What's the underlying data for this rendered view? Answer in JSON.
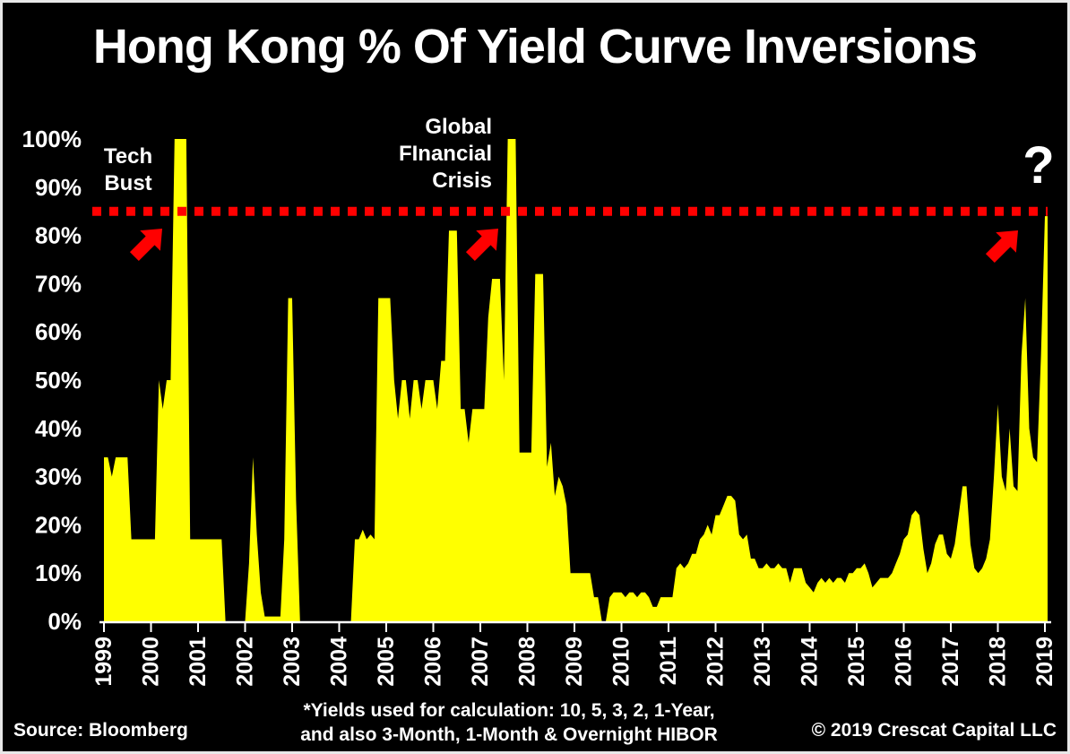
{
  "title": "Hong Kong % Of Yield Curve Inversions",
  "colors": {
    "background": "#000000",
    "text": "#ffffff",
    "series_yellow": "#ffff00",
    "accent_red": "#ff0000",
    "axis": "#ffffff"
  },
  "annotations": {
    "tech_bust": {
      "lines": [
        "Tech",
        "Bust"
      ]
    },
    "gfc": {
      "lines": [
        "Global",
        "FInancial",
        "Crisis"
      ]
    },
    "question_mark": "?"
  },
  "footer": {
    "source": "Source: Bloomberg",
    "note_line1": "*Yields used for calculation: 10, 5, 3, 2, 1-Year,",
    "note_line2": "and also 3-Month, 1-Month & Overnight HIBOR",
    "copyright": "© 2019 Crescat Capital LLC"
  },
  "chart_data": {
    "type": "area",
    "title": "Hong Kong % Of Yield Curve Inversions",
    "series_name": "% of yield curve inversions",
    "series_color": "#ffff00",
    "x_start_year": 1999,
    "points_per_year": 12,
    "x_tick_years": [
      1999,
      2000,
      2001,
      2002,
      2003,
      2004,
      2005,
      2006,
      2007,
      2008,
      2009,
      2010,
      2011,
      2012,
      2013,
      2014,
      2015,
      2016,
      2017,
      2018,
      2019
    ],
    "y_ticks_percent": [
      0,
      10,
      20,
      30,
      40,
      50,
      60,
      70,
      80,
      90,
      100
    ],
    "ylim": [
      0,
      100
    ],
    "grid": false,
    "legend": "none",
    "threshold_line": {
      "value_percent": 85,
      "color": "#ff0000",
      "style": "dotted"
    },
    "values_percent": [
      34,
      34,
      30,
      34,
      34,
      34,
      34,
      17,
      17,
      17,
      17,
      17,
      17,
      17,
      50,
      44,
      50,
      50,
      100,
      100,
      100,
      100,
      17,
      17,
      17,
      17,
      17,
      17,
      17,
      17,
      17,
      0,
      0,
      0,
      0,
      0,
      0,
      12,
      34,
      18,
      6,
      1,
      1,
      1,
      1,
      1,
      17,
      67,
      67,
      25,
      0,
      0,
      0,
      0,
      0,
      0,
      0,
      0,
      0,
      0,
      0,
      0,
      0,
      0,
      17,
      17,
      19,
      17,
      18,
      17,
      67,
      67,
      67,
      67,
      50,
      42,
      50,
      50,
      42,
      50,
      50,
      44,
      50,
      50,
      50,
      44,
      54,
      54,
      81,
      81,
      81,
      44,
      44,
      37,
      44,
      44,
      44,
      44,
      63,
      71,
      71,
      71,
      50,
      100,
      100,
      100,
      35,
      35,
      35,
      35,
      72,
      72,
      72,
      32,
      37,
      26,
      30,
      28,
      24,
      10,
      10,
      10,
      10,
      10,
      10,
      5,
      5,
      0,
      0,
      5,
      6,
      6,
      6,
      5,
      6,
      6,
      5,
      6,
      6,
      5,
      3,
      3,
      5,
      5,
      5,
      5,
      11,
      12,
      11,
      12,
      14,
      14,
      17,
      18,
      20,
      18,
      22,
      22,
      24,
      26,
      26,
      25,
      18,
      17,
      18,
      13,
      13,
      11,
      11,
      12,
      11,
      11,
      12,
      11,
      11,
      8,
      11,
      11,
      11,
      8,
      7,
      6,
      8,
      9,
      8,
      9,
      8,
      9,
      9,
      8,
      10,
      10,
      11,
      11,
      12,
      10,
      7,
      8,
      9,
      9,
      9,
      10,
      12,
      14,
      17,
      18,
      22,
      23,
      22,
      15,
      10,
      12,
      16,
      18,
      18,
      14,
      13,
      16,
      22,
      28,
      28,
      16,
      11,
      10,
      11,
      13,
      17,
      30,
      45,
      30,
      27,
      40,
      28,
      27,
      55,
      67,
      40,
      34,
      33,
      55,
      84,
      84
    ]
  }
}
